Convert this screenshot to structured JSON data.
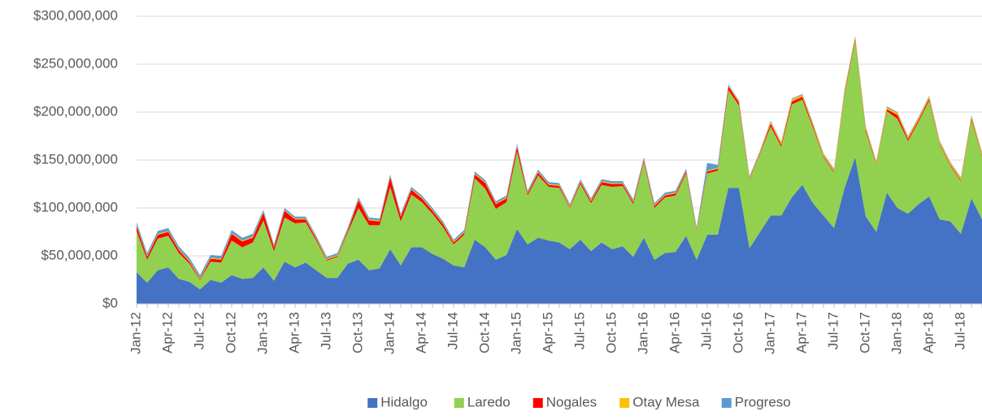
{
  "chart_data": {
    "type": "stacked_area",
    "categories": [
      "Jan-12",
      null,
      null,
      "Apr-12",
      null,
      null,
      "Jul-12",
      null,
      null,
      "Oct-12",
      null,
      null,
      "Jan-13",
      null,
      null,
      "Apr-13",
      null,
      null,
      "Jul-13",
      null,
      null,
      "Oct-13",
      null,
      null,
      "Jan-14",
      null,
      null,
      "Apr-14",
      null,
      null,
      "Jul-14",
      null,
      null,
      "Oct-14",
      null,
      null,
      "Jan-15",
      null,
      null,
      "Apr-15",
      null,
      null,
      "Jul-15",
      null,
      null,
      "Oct-15",
      null,
      null,
      "Jan-16",
      null,
      null,
      "Apr-16",
      null,
      null,
      "Jul-16",
      null,
      null,
      "Oct-16",
      null,
      null,
      "Jan-17",
      null,
      null,
      "Apr-17",
      null,
      null,
      "Jul-17",
      null,
      null,
      "Oct-17",
      null,
      null,
      "Jan-18",
      null,
      null,
      "Apr-18",
      null,
      null,
      "Jul-18",
      null,
      null
    ],
    "series": [
      {
        "name": "Hidalgo",
        "color": "#4472C4",
        "values": [
          33000000,
          22000000,
          35000000,
          38000000,
          26000000,
          23000000,
          15000000,
          25000000,
          22000000,
          30000000,
          26000000,
          27000000,
          38000000,
          24000000,
          44000000,
          38000000,
          43000000,
          35000000,
          27000000,
          27000000,
          42000000,
          46000000,
          35000000,
          37000000,
          57000000,
          40000000,
          59000000,
          59000000,
          52000000,
          47000000,
          40000000,
          38000000,
          67000000,
          59000000,
          46000000,
          51000000,
          78000000,
          62000000,
          69000000,
          66000000,
          64000000,
          57000000,
          67000000,
          55000000,
          64000000,
          57000000,
          60000000,
          49000000,
          69000000,
          46000000,
          53000000,
          54000000,
          71000000,
          46000000,
          72000000,
          72000000,
          121000000,
          121000000,
          58000000,
          75000000,
          92000000,
          92000000,
          111000000,
          124000000,
          105000000,
          92000000,
          79000000,
          121000000,
          153000000,
          91000000,
          75000000,
          116000000,
          100000000,
          94000000,
          104000000,
          112000000,
          88000000,
          86000000,
          73000000,
          110000000,
          88000000
        ]
      },
      {
        "name": "Laredo",
        "color": "#92D050",
        "values": [
          43000000,
          24000000,
          33000000,
          33000000,
          27000000,
          19000000,
          10000000,
          19000000,
          21000000,
          36000000,
          33000000,
          37000000,
          49000000,
          31000000,
          46000000,
          46000000,
          42000000,
          31000000,
          18000000,
          22000000,
          33000000,
          54000000,
          47000000,
          45000000,
          65000000,
          46000000,
          55000000,
          47000000,
          42000000,
          33000000,
          22000000,
          34000000,
          64000000,
          61000000,
          53000000,
          55000000,
          81000000,
          51000000,
          65000000,
          56000000,
          57000000,
          43000000,
          58000000,
          50000000,
          60000000,
          65000000,
          63000000,
          55000000,
          79000000,
          54000000,
          58000000,
          59000000,
          65000000,
          30000000,
          64000000,
          67000000,
          102000000,
          86000000,
          72000000,
          82000000,
          93000000,
          72000000,
          97000000,
          89000000,
          79000000,
          61000000,
          58000000,
          98000000,
          122000000,
          89000000,
          70000000,
          85000000,
          93000000,
          76000000,
          86000000,
          100000000,
          78000000,
          58000000,
          55000000,
          82000000,
          66000000
        ]
      },
      {
        "name": "Nogales",
        "color": "#FF0000",
        "values": [
          5000000,
          3000000,
          4000000,
          4000000,
          3000000,
          2000000,
          1000000,
          3000000,
          3000000,
          7000000,
          6000000,
          5000000,
          8000000,
          4000000,
          7000000,
          4000000,
          3000000,
          2000000,
          1000000,
          1000000,
          2000000,
          8000000,
          5000000,
          4000000,
          10000000,
          5000000,
          5000000,
          4000000,
          3000000,
          3000000,
          2000000,
          2000000,
          4000000,
          6000000,
          5000000,
          4000000,
          5000000,
          2000000,
          3000000,
          2000000,
          2000000,
          1000000,
          2000000,
          2000000,
          3000000,
          3000000,
          2000000,
          2000000,
          2000000,
          2000000,
          2000000,
          2000000,
          2000000,
          1000000,
          2000000,
          2000000,
          4000000,
          3000000,
          1000000,
          1000000,
          3000000,
          2000000,
          3000000,
          3000000,
          2000000,
          1000000,
          1000000,
          2000000,
          2000000,
          2000000,
          1000000,
          2000000,
          4000000,
          2000000,
          2000000,
          2000000,
          1000000,
          1000000,
          1000000,
          2000000,
          1000000
        ]
      },
      {
        "name": "Otay Mesa",
        "color": "#FFC000",
        "values": [
          1000000,
          1000000,
          1000000,
          1000000,
          1000000,
          1000000,
          1000000,
          1000000,
          1000000,
          1000000,
          1000000,
          1000000,
          1000000,
          1000000,
          1000000,
          1000000,
          1000000,
          1000000,
          1000000,
          1000000,
          1000000,
          1000000,
          1000000,
          1000000,
          1000000,
          1000000,
          1000000,
          1000000,
          1000000,
          1000000,
          1000000,
          1000000,
          1000000,
          1000000,
          1000000,
          1000000,
          1000000,
          1000000,
          1000000,
          1000000,
          1000000,
          1000000,
          1000000,
          1000000,
          1000000,
          1000000,
          1000000,
          1000000,
          1000000,
          1000000,
          1000000,
          1000000,
          1000000,
          1000000,
          1000000,
          1000000,
          1000000,
          1000000,
          1000000,
          1000000,
          2000000,
          2000000,
          2000000,
          2000000,
          2000000,
          2000000,
          2000000,
          2000000,
          2000000,
          2000000,
          2000000,
          2000000,
          2000000,
          2000000,
          2000000,
          2000000,
          2000000,
          2000000,
          2000000,
          2000000,
          2000000
        ]
      },
      {
        "name": "Progreso",
        "color": "#5B9BD5",
        "values": [
          3000000,
          3000000,
          3000000,
          3000000,
          3000000,
          3000000,
          3000000,
          3000000,
          3000000,
          3000000,
          3000000,
          3000000,
          2000000,
          2000000,
          2000000,
          2000000,
          2000000,
          2000000,
          2000000,
          2000000,
          2000000,
          2000000,
          2000000,
          2000000,
          2000000,
          2000000,
          2000000,
          2000000,
          2000000,
          2000000,
          2000000,
          2000000,
          2000000,
          2000000,
          2000000,
          2000000,
          2000000,
          2000000,
          2000000,
          2000000,
          2000000,
          2000000,
          2000000,
          2000000,
          2000000,
          2000000,
          2000000,
          2000000,
          2000000,
          2000000,
          2000000,
          2000000,
          2000000,
          2000000,
          8000000,
          3000000,
          1000000,
          1000000,
          1000000,
          1000000,
          1000000,
          1000000,
          1000000,
          1000000,
          1000000,
          1000000,
          1000000,
          1000000,
          1000000,
          1000000,
          1000000,
          1000000,
          1000000,
          1000000,
          1000000,
          1000000,
          1000000,
          1000000,
          1000000,
          1000000,
          1000000
        ]
      }
    ],
    "ylim": [
      0,
      300000000
    ],
    "yticks": [
      {
        "value": 0,
        "label": "$0"
      },
      {
        "value": 50000000,
        "label": "$50,000,000"
      },
      {
        "value": 100000000,
        "label": "$100,000,000"
      },
      {
        "value": 150000000,
        "label": "$150,000,000"
      },
      {
        "value": 200000000,
        "label": "$200,000,000"
      },
      {
        "value": 250000000,
        "label": "$250,000,000"
      },
      {
        "value": 300000000,
        "label": "$300,000,000"
      }
    ],
    "grid": true,
    "legend": "bottom"
  }
}
